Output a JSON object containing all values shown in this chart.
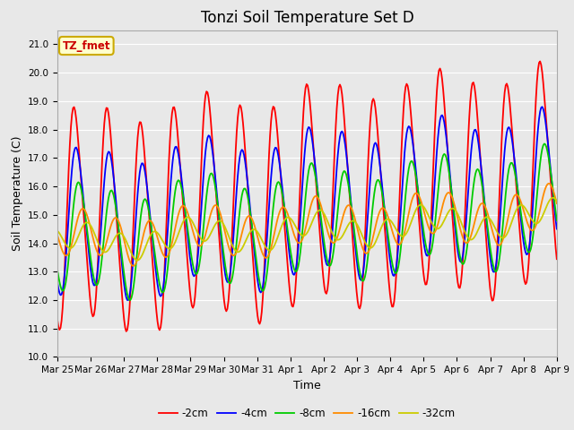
{
  "title": "Tonzi Soil Temperature Set D",
  "xlabel": "Time",
  "ylabel": "Soil Temperature (C)",
  "ylim": [
    10.0,
    21.5
  ],
  "yticks": [
    10.0,
    11.0,
    12.0,
    13.0,
    14.0,
    15.0,
    16.0,
    17.0,
    18.0,
    19.0,
    20.0,
    21.0
  ],
  "x_labels": [
    "Mar 25",
    "Mar 26",
    "Mar 27",
    "Mar 28",
    "Mar 29",
    "Mar 30",
    "Mar 31",
    "Apr 1",
    "Apr 2",
    "Apr 3",
    "Apr 4",
    "Apr 5",
    "Apr 6",
    "Apr 7",
    "Apr 8",
    "Apr 9"
  ],
  "num_points": 480,
  "legend_entries": [
    "-2cm",
    "-4cm",
    "-8cm",
    "-16cm",
    "-32cm"
  ],
  "legend_colors": [
    "#ff0000",
    "#0000ff",
    "#00cc00",
    "#ff8c00",
    "#cccc00"
  ],
  "annotation_text": "TZ_fmet",
  "annotation_color": "#cc0000",
  "annotation_bg": "#ffffcc",
  "annotation_border": "#ccaa00",
  "bg_color": "#e8e8e8",
  "plot_bg_color": "#e8e8e8",
  "grid_color": "#ffffff",
  "title_fontsize": 12,
  "label_fontsize": 9,
  "tick_fontsize": 7.5
}
